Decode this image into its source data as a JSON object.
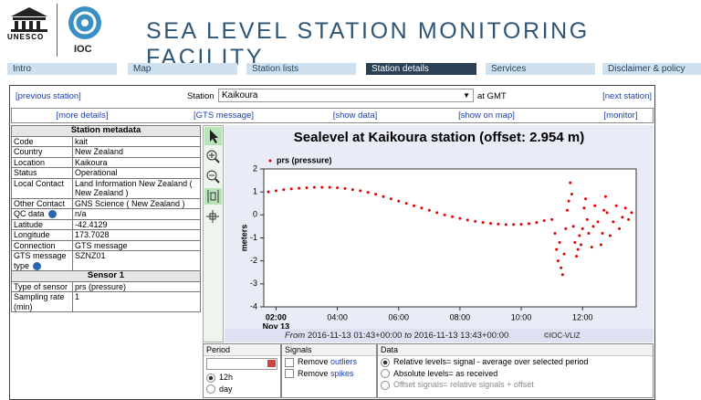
{
  "header": {
    "logo_left": "UNESCO",
    "logo_right": "IOC",
    "title": "SEA LEVEL STATION MONITORING FACILITY"
  },
  "nav": [
    "Intro",
    "Map",
    "Station lists",
    "Station details",
    "Services",
    "Disclaimer & policy"
  ],
  "station_bar": {
    "previous": "[previous station]",
    "station_label": "Station",
    "station": "Kaikoura",
    "time_label": "at GMT",
    "next": "[next station]"
  },
  "links": [
    "[more details]",
    "[GTS message]",
    "[show data]",
    "[show on map]",
    "[monitor]"
  ],
  "metadata": {
    "title": "Station metadata",
    "rows": [
      [
        "Code",
        "kait"
      ],
      [
        "Country",
        "New Zealand"
      ],
      [
        "Location",
        "Kaikoura"
      ],
      [
        "Status",
        "Operational"
      ],
      [
        "Local Contact",
        "Land Information New Zealand ( New Zealand )"
      ],
      [
        "Other Contact",
        "GNS Science ( New Zealand )"
      ],
      [
        "QC data",
        "n/a"
      ],
      [
        "Latitude",
        "-42.4129"
      ],
      [
        "Longitude",
        "173.7028"
      ],
      [
        "Connection",
        "GTS message"
      ],
      [
        "GTS message type",
        "SZNZ01"
      ]
    ]
  },
  "sensor": {
    "title": "Sensor 1",
    "rows": [
      [
        "Type of sensor",
        "prs (pressure)"
      ],
      [
        "Sampling rate (min)",
        "1"
      ]
    ]
  },
  "chart_data": {
    "type": "scatter",
    "title": "Sealevel at Kaikoura station (offset: 2.954 m)",
    "y_label": "meters",
    "x_sublabel": "Nov 13",
    "xlim": [
      1.6,
      13.75
    ],
    "ylim": [
      -4,
      2
    ],
    "yticks": [
      -4,
      -3,
      -2,
      -1,
      0,
      1,
      2
    ],
    "xticks": [
      {
        "value": 2,
        "label": "02:00"
      },
      {
        "value": 4,
        "label": "04:00"
      },
      {
        "value": 6,
        "label": "06:00"
      },
      {
        "value": 8,
        "label": "08:00"
      },
      {
        "value": 10,
        "label": "10:00"
      },
      {
        "value": 12,
        "label": "12:00"
      }
    ],
    "series": [
      {
        "name": "prs (pressure)",
        "color": "#e00000",
        "x": [
          1.75,
          2.0,
          2.25,
          2.5,
          2.75,
          3.0,
          3.25,
          3.5,
          3.75,
          4.0,
          4.25,
          4.5,
          4.75,
          5.0,
          5.25,
          5.5,
          5.75,
          6.0,
          6.25,
          6.5,
          6.75,
          7.0,
          7.25,
          7.5,
          7.75,
          8.0,
          8.25,
          8.5,
          8.75,
          9.0,
          9.25,
          9.5,
          9.75,
          10.0,
          10.25,
          10.5,
          10.75,
          11.0,
          11.1,
          11.15,
          11.2,
          11.25,
          11.3,
          11.35,
          11.4,
          11.45,
          11.5,
          11.55,
          11.6,
          11.65,
          11.7,
          11.75,
          11.8,
          11.85,
          11.9,
          11.95,
          12.0,
          12.05,
          12.1,
          12.15,
          12.2,
          12.3,
          12.35,
          12.4,
          12.5,
          12.6,
          12.65,
          12.7,
          12.75,
          12.8,
          12.9,
          13.0,
          13.1,
          13.2,
          13.3,
          13.4,
          13.5,
          13.6
        ],
        "values": [
          1.0,
          1.05,
          1.1,
          1.13,
          1.16,
          1.18,
          1.2,
          1.2,
          1.2,
          1.18,
          1.15,
          1.1,
          1.05,
          0.98,
          0.9,
          0.8,
          0.7,
          0.6,
          0.5,
          0.4,
          0.3,
          0.2,
          0.1,
          0.0,
          -0.08,
          -0.15,
          -0.22,
          -0.28,
          -0.33,
          -0.37,
          -0.4,
          -0.42,
          -0.42,
          -0.41,
          -0.38,
          -0.33,
          -0.25,
          -0.2,
          -0.8,
          -1.5,
          -2.0,
          -1.2,
          -2.3,
          -2.6,
          -1.7,
          -0.6,
          0.2,
          0.6,
          1.4,
          0.9,
          -0.5,
          -1.2,
          -1.8,
          -1.5,
          -0.9,
          -1.3,
          -0.6,
          0.3,
          0.7,
          -0.2,
          -0.8,
          -1.4,
          -0.5,
          0.4,
          -0.3,
          -1.3,
          -0.8,
          0.2,
          0.8,
          0.1,
          -0.9,
          -0.3,
          0.4,
          -0.6,
          -0.1,
          0.3,
          -0.2,
          0.1
        ]
      }
    ]
  },
  "chart_footer": {
    "from_label": "From",
    "from": "2016-11-13 01:43+00:00",
    "to_label": "to",
    "to": "2016-11-13 13:43+00:00",
    "credit": "©IOC-VLIZ"
  },
  "controls": {
    "period": {
      "title": "Period",
      "options": [
        "12h",
        "day"
      ]
    },
    "signals": {
      "title": "Signals",
      "options": [
        {
          "text": "Remove",
          "link": "outliers"
        },
        {
          "text": "Remove",
          "link": "spikes"
        }
      ]
    },
    "data": {
      "title": "Data",
      "options": [
        "Relative levels= signal - average over selected period",
        "Absolute levels= as received",
        "Offset signals= relative signals + offset"
      ]
    }
  }
}
